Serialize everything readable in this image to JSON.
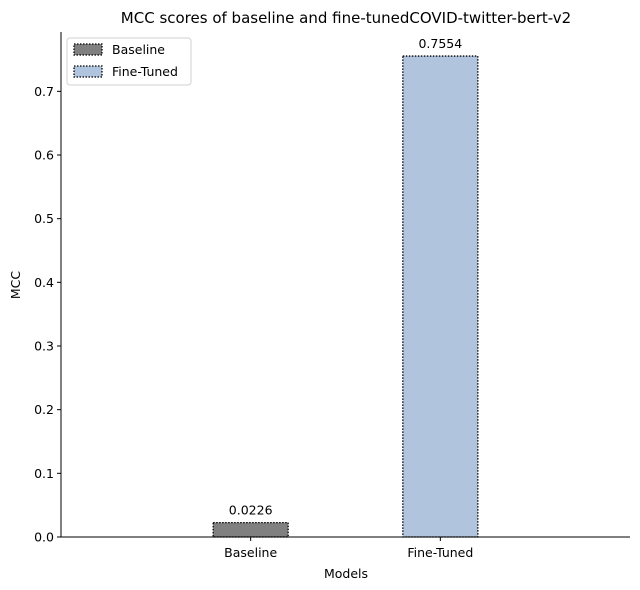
{
  "chart_data": {
    "type": "bar",
    "title": "MCC scores of baseline and fine-tunedCOVID-twitter-bert-v2",
    "xlabel": "Models",
    "ylabel": "MCC",
    "categories": [
      "Baseline",
      "Fine-Tuned"
    ],
    "values": [
      0.0226,
      0.7554
    ],
    "value_labels": [
      "0.0226",
      "0.7554"
    ],
    "colors": [
      "#808080",
      "#b0c4de"
    ],
    "ylim": [
      0,
      0.7932
    ],
    "yticks": [
      0.0,
      0.1,
      0.2,
      0.3,
      0.4,
      0.5,
      0.6,
      0.7
    ],
    "ytick_labels": [
      "0.0",
      "0.1",
      "0.2",
      "0.3",
      "0.4",
      "0.5",
      "0.6",
      "0.7"
    ],
    "grid": false,
    "legend": {
      "position": "top-left",
      "entries": [
        {
          "label": "Baseline",
          "color": "#808080"
        },
        {
          "label": "Fine-Tuned",
          "color": "#b0c4de"
        }
      ]
    }
  }
}
